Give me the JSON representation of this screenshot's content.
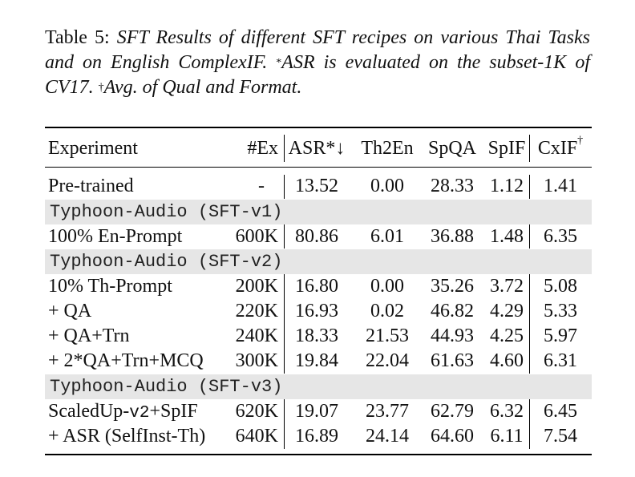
{
  "caption": {
    "label": "Table 5: ",
    "text": "SFT Results of different SFT recipes on various Thai Tasks and on English ComplexIF. ",
    "note1_mark": "*",
    "note1": "ASR is evaluated on the subset-1K of CV17. ",
    "note2_mark": "†",
    "note2": "Avg. of Qual and Format."
  },
  "header": {
    "experiment": "Experiment",
    "ex": "#Ex",
    "asr": "ASR*↓",
    "th2en": "Th2En",
    "spqa": "SpQA",
    "spif": "SpIF",
    "cxif": "CxIF",
    "cxif_mark": "†"
  },
  "rows": {
    "pretrained": {
      "experiment": "Pre-trained",
      "ex": "-",
      "asr": "13.52",
      "th2en": "0.00",
      "spqa": "28.33",
      "spif": "1.12",
      "cxif": "1.41"
    },
    "g1": {
      "label": "Typhoon-Audio (SFT-v1)"
    },
    "r1": {
      "experiment": "100% En-Prompt",
      "ex": "600K",
      "asr": "80.86",
      "th2en": "6.01",
      "spqa": "36.88",
      "spif": "1.48",
      "cxif": "6.35"
    },
    "g2": {
      "label": "Typhoon-Audio (SFT-v2)"
    },
    "r2": {
      "experiment": "10% Th-Prompt",
      "ex": "200K",
      "asr": "16.80",
      "th2en": "0.00",
      "spqa": "35.26",
      "spif": "3.72",
      "cxif": "5.08"
    },
    "r3": {
      "experiment": "+ QA",
      "ex": "220K",
      "asr": "16.93",
      "th2en": "0.02",
      "spqa": "46.82",
      "spif": "4.29",
      "cxif": "5.33"
    },
    "r4": {
      "experiment": "+ QA+Trn",
      "ex": "240K",
      "asr": "18.33",
      "th2en": "21.53",
      "spqa": "44.93",
      "spif": "4.25",
      "cxif": "5.97"
    },
    "r5": {
      "experiment": "+ 2*QA+Trn+MCQ",
      "ex": "300K",
      "asr": "19.84",
      "th2en": "22.04",
      "spqa": "61.63",
      "spif": "4.60",
      "cxif": "6.31"
    },
    "g3": {
      "label": "Typhoon-Audio (SFT-v3)"
    },
    "r6": {
      "experiment_a": "ScaledUp-",
      "experiment_mono": "v2",
      "experiment_b": "+SpIF",
      "ex": "620K",
      "asr": "19.07",
      "th2en": "23.77",
      "spqa": "62.79",
      "spif": "6.32",
      "cxif": "6.45"
    },
    "r7": {
      "experiment": "+ ASR (SelfInst-Th)",
      "ex": "640K",
      "asr": "16.89",
      "th2en": "24.14",
      "spqa": "64.60",
      "spif": "6.11",
      "cxif": "7.54"
    }
  }
}
